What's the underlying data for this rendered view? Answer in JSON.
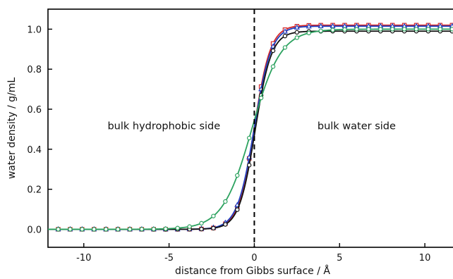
{
  "chart_data": {
    "type": "line",
    "title": "",
    "xlabel": "distance from Gibbs surface / Å",
    "ylabel": "water density / g/mL",
    "xlim": [
      -12.1,
      11.9
    ],
    "ylim": [
      -0.09,
      1.1
    ],
    "xticks": [
      -10,
      -5,
      0,
      5,
      10
    ],
    "yticks": [
      0.0,
      0.2,
      0.4,
      0.6,
      0.8,
      1.0
    ],
    "xtick_labels": [
      "-10",
      "-5",
      "0",
      "5",
      "10"
    ],
    "ytick_labels": [
      "0.0",
      "0.2",
      "0.4",
      "0.6",
      "0.8",
      "1.0"
    ],
    "grid": false,
    "legend": "none",
    "vline": {
      "x": 0,
      "style": "dashed",
      "color": "#000000"
    },
    "annotations": [
      {
        "text": "bulk hydrophobic side",
        "x": -5.3,
        "y": 0.5
      },
      {
        "text": "bulk water side",
        "x": 6.0,
        "y": 0.5
      }
    ],
    "marker_x": [
      -11.5,
      -10.8,
      -10.1,
      -9.4,
      -8.7,
      -8.0,
      -7.3,
      -6.6,
      -5.9,
      -5.2,
      -4.5,
      -3.8,
      -3.1,
      -2.4,
      -1.7,
      -1.0,
      -0.3,
      0.4,
      1.1,
      1.8,
      2.5,
      3.2,
      3.9,
      4.6,
      5.3,
      6.0,
      6.7,
      7.4,
      8.1,
      8.8,
      9.5,
      10.2,
      10.9,
      11.6
    ],
    "series": [
      {
        "color": "#d62728",
        "marker": "square",
        "bulk": 1.02,
        "x0": 0.0,
        "width": 0.95
      },
      {
        "color": "#1f3fbf",
        "marker": "triangle",
        "bulk": 1.015,
        "x0": 0.0,
        "width": 1.0
      },
      {
        "color": "#111111",
        "marker": "circle",
        "bulk": 0.99,
        "x0": 0.05,
        "width": 0.95
      },
      {
        "color": "#2ca25f",
        "marker": "circle",
        "bulk": 1.0,
        "x0": -0.15,
        "width": 1.7
      }
    ]
  }
}
